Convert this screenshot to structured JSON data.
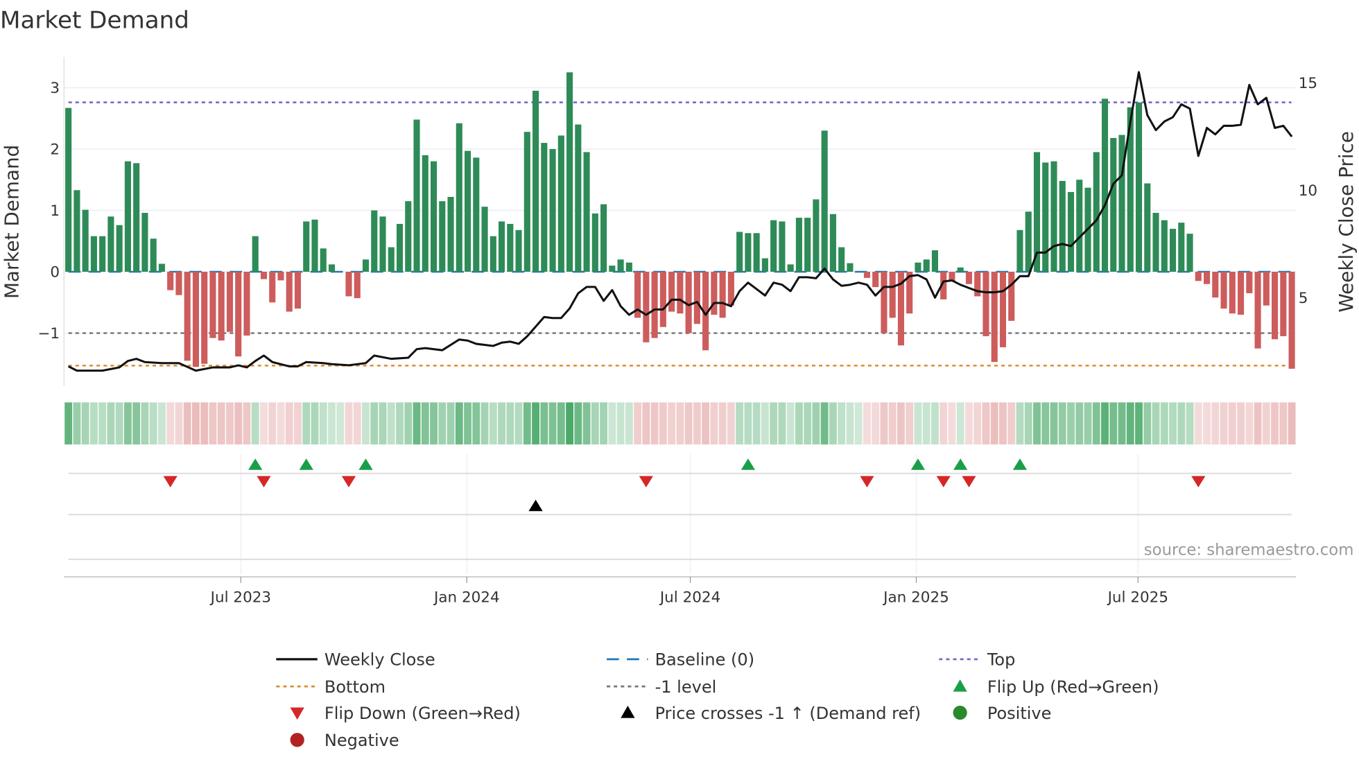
{
  "chart_data": {
    "type": "bar",
    "title": "Market Demand",
    "ylabel": "Market Demand",
    "y2label": "Weekly Close Price",
    "ylim": [
      -1.85,
      3.5
    ],
    "y2lim": [
      0,
      17
    ],
    "y_ticks": [
      "3",
      "2",
      "1",
      "0",
      "−1"
    ],
    "y_tick_values": [
      3,
      2,
      1,
      0,
      -1
    ],
    "y2_ticks": [
      "15",
      "10",
      "5"
    ],
    "y2_tick_values": [
      15,
      10,
      5
    ],
    "x_ticks": [
      {
        "label": "Jul 2023",
        "week": 20.3
      },
      {
        "label": "Jan 2024",
        "week": 46.9
      },
      {
        "label": "Jul 2024",
        "week": 73.2
      },
      {
        "label": "Jan 2025",
        "week": 99.8
      },
      {
        "label": "Jul 2025",
        "week": 125.9
      }
    ],
    "levels": {
      "top": 2.76,
      "baseline": 0,
      "minus_one": -1,
      "bottom": -1.53
    },
    "demand": [
      2.67,
      1.33,
      1.01,
      0.58,
      0.58,
      0.9,
      0.76,
      1.8,
      1.77,
      0.96,
      0.54,
      0.13,
      -0.3,
      -0.38,
      -1.45,
      -1.55,
      -1.5,
      -1.08,
      -1.12,
      -0.98,
      -1.38,
      -1.04,
      0.58,
      -0.12,
      -0.5,
      -0.14,
      -0.65,
      -0.6,
      0.82,
      0.85,
      0.38,
      0.12,
      0,
      -0.4,
      -0.43,
      0.2,
      1.0,
      0.9,
      0.4,
      0.78,
      1.15,
      2.48,
      1.9,
      1.8,
      1.15,
      1.22,
      2.42,
      1.97,
      1.86,
      1.06,
      0.58,
      0.82,
      0.78,
      0.68,
      2.28,
      2.95,
      2.1,
      2.0,
      2.22,
      3.25,
      2.4,
      1.95,
      0.95,
      1.1,
      0.1,
      0.2,
      0.15,
      -0.75,
      -1.15,
      -1.08,
      -0.9,
      -0.65,
      -0.68,
      -1.0,
      -0.85,
      -1.28,
      -0.7,
      -0.75,
      -0.55,
      0.65,
      0.63,
      0.63,
      0.22,
      0.84,
      0.82,
      0.12,
      0.88,
      0.88,
      1.18,
      2.3,
      0.94,
      0.4,
      0.14,
      0,
      -0.1,
      -0.25,
      -1.0,
      -0.75,
      -1.2,
      -0.68,
      0.15,
      0.2,
      0.35,
      -0.45,
      -0.15,
      0.07,
      -0.2,
      -0.4,
      -1.05,
      -1.47,
      -1.23,
      -0.8,
      0.68,
      0.98,
      1.95,
      1.78,
      1.8,
      1.48,
      1.3,
      1.5,
      1.37,
      1.95,
      2.82,
      2.18,
      2.23,
      2.68,
      2.76,
      1.44,
      0.96,
      0.84,
      0.7,
      0.8,
      0.62,
      -0.15,
      -0.2,
      -0.42,
      -0.6,
      -0.68,
      -0.7,
      -0.35,
      -1.25,
      -0.55,
      -1.1,
      -1.05,
      -1.58
    ],
    "weekly_close": [
      [
        0,
        1.8
      ],
      [
        1,
        1.6
      ],
      [
        4,
        1.6
      ],
      [
        6,
        1.75
      ],
      [
        7,
        2.05
      ],
      [
        8,
        2.15
      ],
      [
        9,
        2.0
      ],
      [
        11,
        1.95
      ],
      [
        13,
        1.95
      ],
      [
        15,
        1.6
      ],
      [
        17,
        1.75
      ],
      [
        19,
        1.75
      ],
      [
        20,
        1.85
      ],
      [
        21,
        1.75
      ],
      [
        22,
        2.05
      ],
      [
        23,
        2.3
      ],
      [
        24,
        2.0
      ],
      [
        26,
        1.8
      ],
      [
        27,
        1.8
      ],
      [
        28,
        2.0
      ],
      [
        30,
        1.95
      ],
      [
        31,
        1.9
      ],
      [
        33,
        1.85
      ],
      [
        35,
        1.95
      ],
      [
        36,
        2.3
      ],
      [
        38,
        2.15
      ],
      [
        40,
        2.2
      ],
      [
        41,
        2.6
      ],
      [
        42,
        2.65
      ],
      [
        44,
        2.55
      ],
      [
        46,
        3.05
      ],
      [
        47,
        3.0
      ],
      [
        48,
        2.85
      ],
      [
        50,
        2.75
      ],
      [
        51,
        2.9
      ],
      [
        52,
        2.95
      ],
      [
        53,
        2.85
      ],
      [
        54,
        3.2
      ],
      [
        56,
        4.1
      ],
      [
        57,
        4.05
      ],
      [
        58,
        4.05
      ],
      [
        59,
        4.5
      ],
      [
        60,
        5.2
      ],
      [
        61,
        5.5
      ],
      [
        62,
        5.5
      ],
      [
        63,
        4.85
      ],
      [
        64,
        5.35
      ],
      [
        65,
        4.6
      ],
      [
        66,
        4.2
      ],
      [
        67,
        4.45
      ],
      [
        68,
        4.2
      ],
      [
        69,
        4.45
      ],
      [
        70,
        4.45
      ],
      [
        71,
        4.9
      ],
      [
        72,
        4.9
      ],
      [
        73,
        4.65
      ],
      [
        74,
        4.8
      ],
      [
        75,
        4.2
      ],
      [
        76,
        4.75
      ],
      [
        77,
        4.75
      ],
      [
        78,
        4.6
      ],
      [
        79,
        5.3
      ],
      [
        80,
        5.7
      ],
      [
        81,
        5.4
      ],
      [
        82,
        5.1
      ],
      [
        83,
        5.7
      ],
      [
        84,
        5.6
      ],
      [
        85,
        5.3
      ],
      [
        86,
        5.95
      ],
      [
        87,
        5.95
      ],
      [
        88,
        5.9
      ],
      [
        89,
        6.35
      ],
      [
        90,
        5.85
      ],
      [
        91,
        5.55
      ],
      [
        92,
        5.6
      ],
      [
        93,
        5.7
      ],
      [
        94,
        5.6
      ],
      [
        95,
        5.1
      ],
      [
        96,
        5.5
      ],
      [
        97,
        5.5
      ],
      [
        98,
        5.65
      ],
      [
        99,
        6.0
      ],
      [
        100,
        6.05
      ],
      [
        101,
        5.85
      ],
      [
        102,
        5.0
      ],
      [
        103,
        5.75
      ],
      [
        104,
        5.8
      ],
      [
        105,
        5.6
      ],
      [
        106,
        5.45
      ],
      [
        107,
        5.3
      ],
      [
        108,
        5.25
      ],
      [
        109,
        5.25
      ],
      [
        110,
        5.3
      ],
      [
        111,
        5.6
      ],
      [
        112,
        6.0
      ],
      [
        113,
        6.0
      ],
      [
        114,
        7.1
      ],
      [
        115,
        7.1
      ],
      [
        116,
        7.4
      ],
      [
        117,
        7.5
      ],
      [
        118,
        7.4
      ],
      [
        119,
        7.8
      ],
      [
        120,
        8.2
      ],
      [
        121,
        8.6
      ],
      [
        122,
        9.3
      ],
      [
        123,
        10.3
      ],
      [
        124,
        10.7
      ],
      [
        125,
        13.2
      ],
      [
        126,
        15.5
      ],
      [
        127,
        13.5
      ],
      [
        128,
        12.8
      ],
      [
        129,
        13.2
      ],
      [
        130,
        13.4
      ],
      [
        131,
        14.0
      ],
      [
        132,
        13.8
      ],
      [
        133,
        11.6
      ],
      [
        134,
        12.9
      ],
      [
        135,
        12.6
      ],
      [
        136,
        13.0
      ],
      [
        137,
        13.0
      ],
      [
        138,
        13.05
      ],
      [
        139,
        14.9
      ],
      [
        140,
        14.0
      ],
      [
        141,
        14.3
      ],
      [
        142,
        12.9
      ],
      [
        143,
        13.0
      ],
      [
        144,
        12.5
      ]
    ],
    "flip_up_weeks": [
      22,
      28,
      35,
      80,
      100,
      105,
      112
    ],
    "flip_down_weeks": [
      12,
      23,
      33,
      68,
      94,
      103,
      106,
      133
    ],
    "price_cross_weeks": [
      55
    ],
    "legend": [
      {
        "label": "Weekly Close",
        "kind": "line"
      },
      {
        "label": "Baseline (0)",
        "kind": "baseline"
      },
      {
        "label": "Top",
        "kind": "top"
      },
      {
        "label": "Bottom",
        "kind": "bottom"
      },
      {
        "label": "-1 level",
        "kind": "minus_one"
      },
      {
        "label": "Flip Up (Red→Green)",
        "kind": "flip_up"
      },
      {
        "label": "Flip Down (Green→Red)",
        "kind": "flip_down"
      },
      {
        "label": "Price crosses -1 ↑ (Demand ref)",
        "kind": "cross"
      },
      {
        "label": "Positive",
        "kind": "positive"
      },
      {
        "label": "Negative",
        "kind": "negative"
      }
    ],
    "legend_placement": "bottom",
    "source": "source: sharemaestro.com",
    "colors": {
      "positive": "#2e8b57",
      "negative": "#cd5c5c",
      "price": "#111111",
      "top": "#7b68c8",
      "bottom": "#e08a2c",
      "minus_one": "#777777",
      "baseline": "#1f77b4",
      "flip_up": "#1a9e4a",
      "flip_down": "#d62728",
      "cross": "#000000",
      "positive_dot": "#2a8a2a",
      "negative_dot": "#b22222"
    }
  }
}
